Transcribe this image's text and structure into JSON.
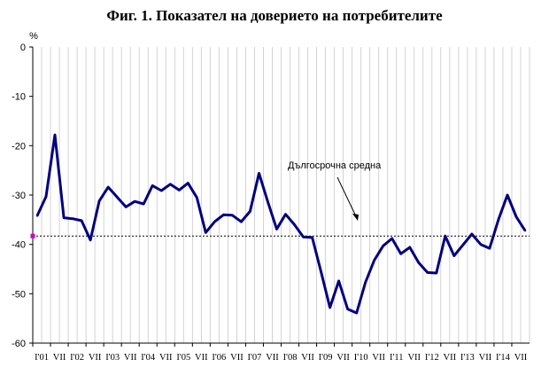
{
  "chart_data": {
    "type": "line",
    "title": "Фиг. 1. Показател на доверието на потребителите",
    "ylabel": "%",
    "ylim": [
      -60,
      0
    ],
    "y_ticks": [
      0,
      -10,
      -20,
      -30,
      -40,
      -50,
      -60
    ],
    "grid": "vertical",
    "x_tick_labels": [
      "I'01",
      "VII",
      "I'02",
      "VII",
      "I'03",
      "VII",
      "I'04",
      "VII",
      "I'05",
      "VII",
      "I'06",
      "VII",
      "I'07",
      "VII",
      "I'08",
      "VII",
      "I'09",
      "VII",
      "I'10",
      "VII",
      "I'11",
      "VII",
      "I'12",
      "VII",
      "I'13",
      "VII",
      "I'14",
      "VII"
    ],
    "series": [
      {
        "values": [
          -34.2,
          -30.3,
          -17.8,
          -34.6,
          -34.8,
          -35.2,
          -39.1,
          -31.2,
          -28.4,
          -30.4,
          -32.4,
          -31.3,
          -31.8,
          -28.1,
          -29.1,
          -27.8,
          -29.0,
          -27.6,
          -30.5,
          -37.6,
          -35.4,
          -34.0,
          -34.1,
          -35.4,
          -33.3,
          -25.6,
          -31.4,
          -36.9,
          -33.9,
          -36.0,
          -38.5,
          -38.6,
          -45.6,
          -52.8,
          -47.4,
          -53.1,
          -53.9,
          -47.7,
          -43.2,
          -40.3,
          -38.8,
          -41.9,
          -40.6,
          -43.7,
          -45.7,
          -45.8,
          -38.3,
          -42.3,
          -40.1,
          -37.9,
          -40.0,
          -40.8,
          -35.0,
          -30.0,
          -34.4,
          -37.2
        ],
        "color": "#000080"
      }
    ],
    "reference_line": {
      "label": "Дългосрочна средна",
      "value": -38.3
    }
  }
}
